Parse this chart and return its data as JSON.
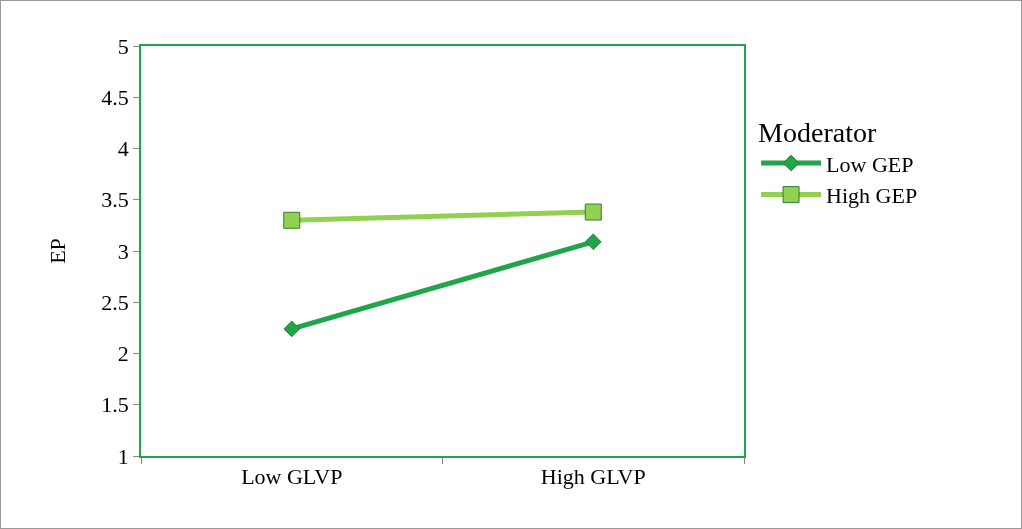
{
  "chart_data": {
    "type": "line",
    "ylabel": "EP",
    "legend_title": "Moderator",
    "categories": [
      "Low GLVP",
      "High GLVP"
    ],
    "series": [
      {
        "name": "Low GEP",
        "color": "#1fa64a",
        "marker": "diamond",
        "values": [
          2.24,
          3.09
        ]
      },
      {
        "name": "High GEP",
        "color": "#92d050",
        "marker": "square",
        "values": [
          3.3,
          3.38
        ]
      }
    ],
    "ylim": [
      1,
      5
    ],
    "yticks": [
      1,
      1.5,
      2,
      2.5,
      3,
      3.5,
      4,
      4.5,
      5
    ],
    "grid": false,
    "legend": "right",
    "line_style": "solid"
  }
}
